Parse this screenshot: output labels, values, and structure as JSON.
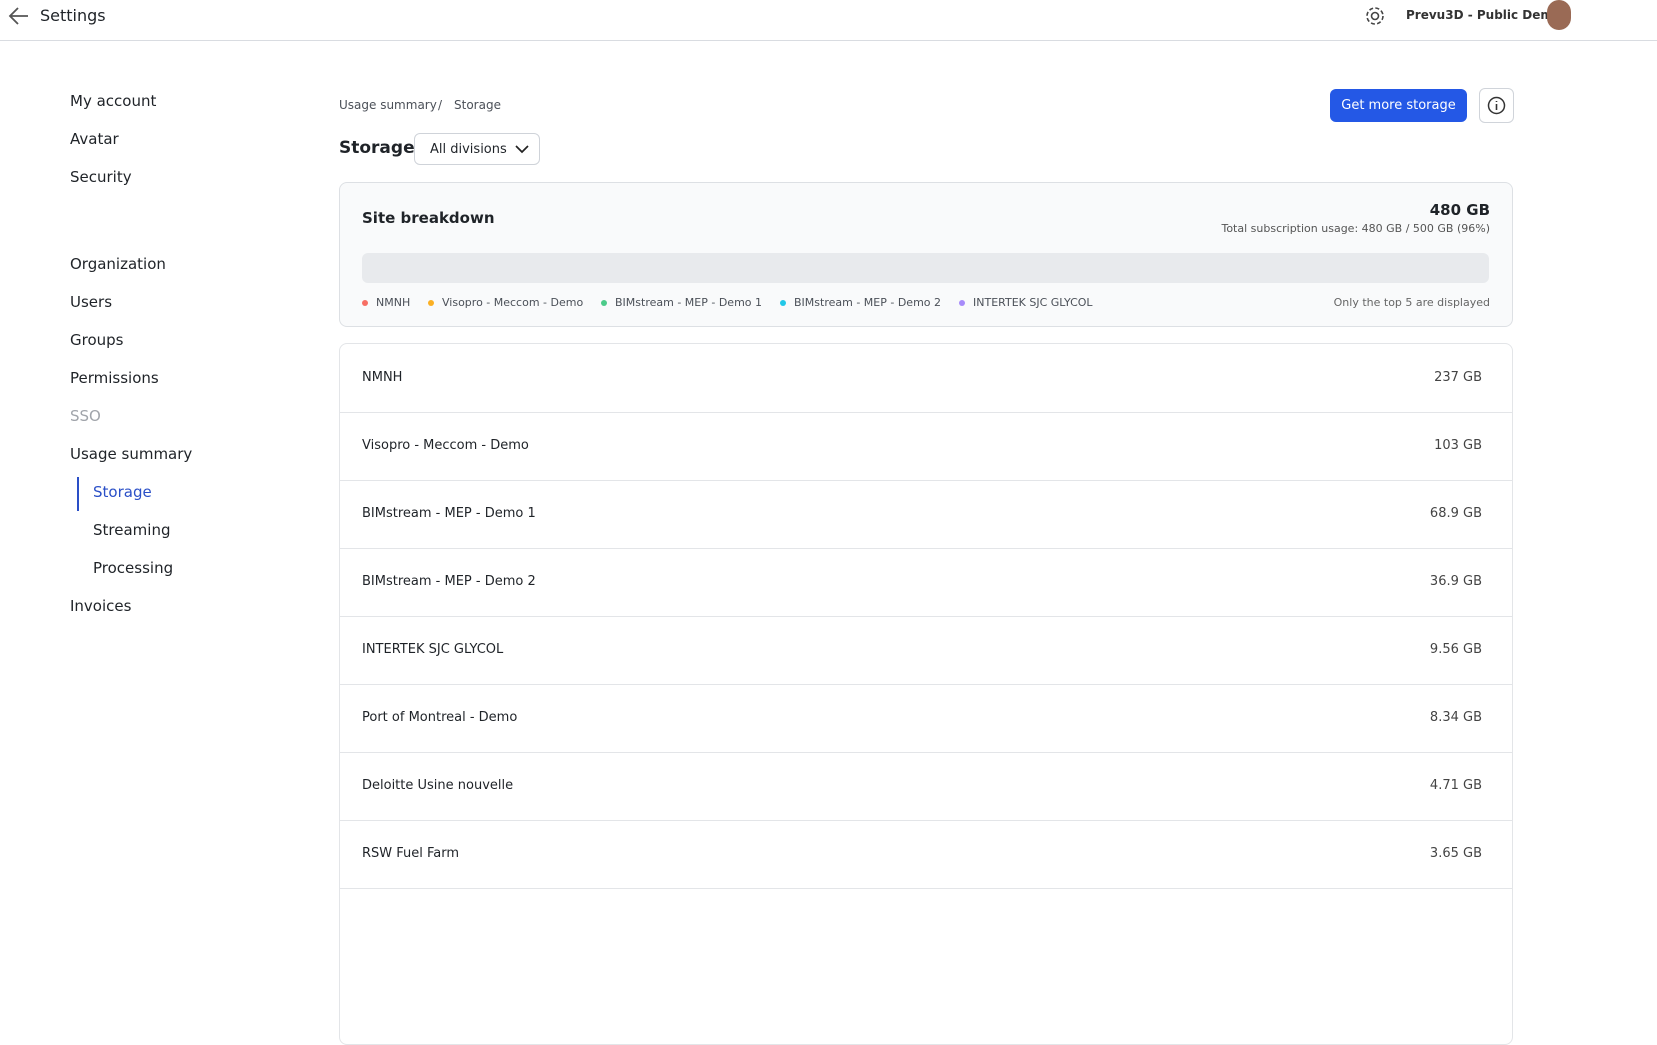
{
  "header": {
    "title": "Settings",
    "workspace": "Prevu3D - Public Demos"
  },
  "sidebar": {
    "groups": [
      [
        {
          "label": "My account"
        },
        {
          "label": "Avatar"
        },
        {
          "label": "Security"
        }
      ],
      [
        {
          "label": "Organization"
        },
        {
          "label": "Users"
        },
        {
          "label": "Groups"
        },
        {
          "label": "Permissions"
        },
        {
          "label": "SSO",
          "disabled": true
        },
        {
          "label": "Usage summary"
        },
        {
          "label": "Storage",
          "sub": true,
          "active": true
        },
        {
          "label": "Streaming",
          "sub": true
        },
        {
          "label": "Processing",
          "sub": true
        },
        {
          "label": "Invoices"
        }
      ]
    ]
  },
  "breadcrumb": [
    "Usage summary",
    "Storage"
  ],
  "actions": {
    "primary": "Get more storage"
  },
  "page": {
    "title": "Storage",
    "filter": "All divisions"
  },
  "breakdown": {
    "title": "Site breakdown",
    "total": {
      "value": 480,
      "label": "480 GB"
    },
    "subscription": "Total subscription usage: 480 GB / 500 GB (96%)",
    "capacity": 500,
    "note": "Only the top 5 are displayed",
    "top": 5,
    "colors": [
      "#f76e64",
      "#fbb024",
      "#4ccb8a",
      "#22c8e8",
      "#a78bfa"
    ],
    "other_color": "#9ca3af"
  },
  "sites": [
    {
      "name": "NMNH",
      "size": {
        "value": 237,
        "label": "237 GB"
      }
    },
    {
      "name": "Visopro - Meccom - Demo",
      "size": {
        "value": 103,
        "label": "103 GB"
      }
    },
    {
      "name": "BIMstream - MEP - Demo 1",
      "size": {
        "value": 68.9,
        "label": "68.9 GB"
      }
    },
    {
      "name": "BIMstream - MEP - Demo 2",
      "size": {
        "value": 36.9,
        "label": "36.9 GB"
      }
    },
    {
      "name": "INTERTEK SJC GLYCOL",
      "size": {
        "value": 9.56,
        "label": "9.56 GB"
      }
    },
    {
      "name": "Port of Montreal - Demo",
      "size": {
        "value": 8.34,
        "label": "8.34 GB"
      }
    },
    {
      "name": "Deloitte Usine nouvelle",
      "size": {
        "value": 4.71,
        "label": "4.71 GB"
      }
    },
    {
      "name": "RSW Fuel Farm",
      "size": {
        "value": 3.65,
        "label": "3.65 GB"
      }
    }
  ]
}
